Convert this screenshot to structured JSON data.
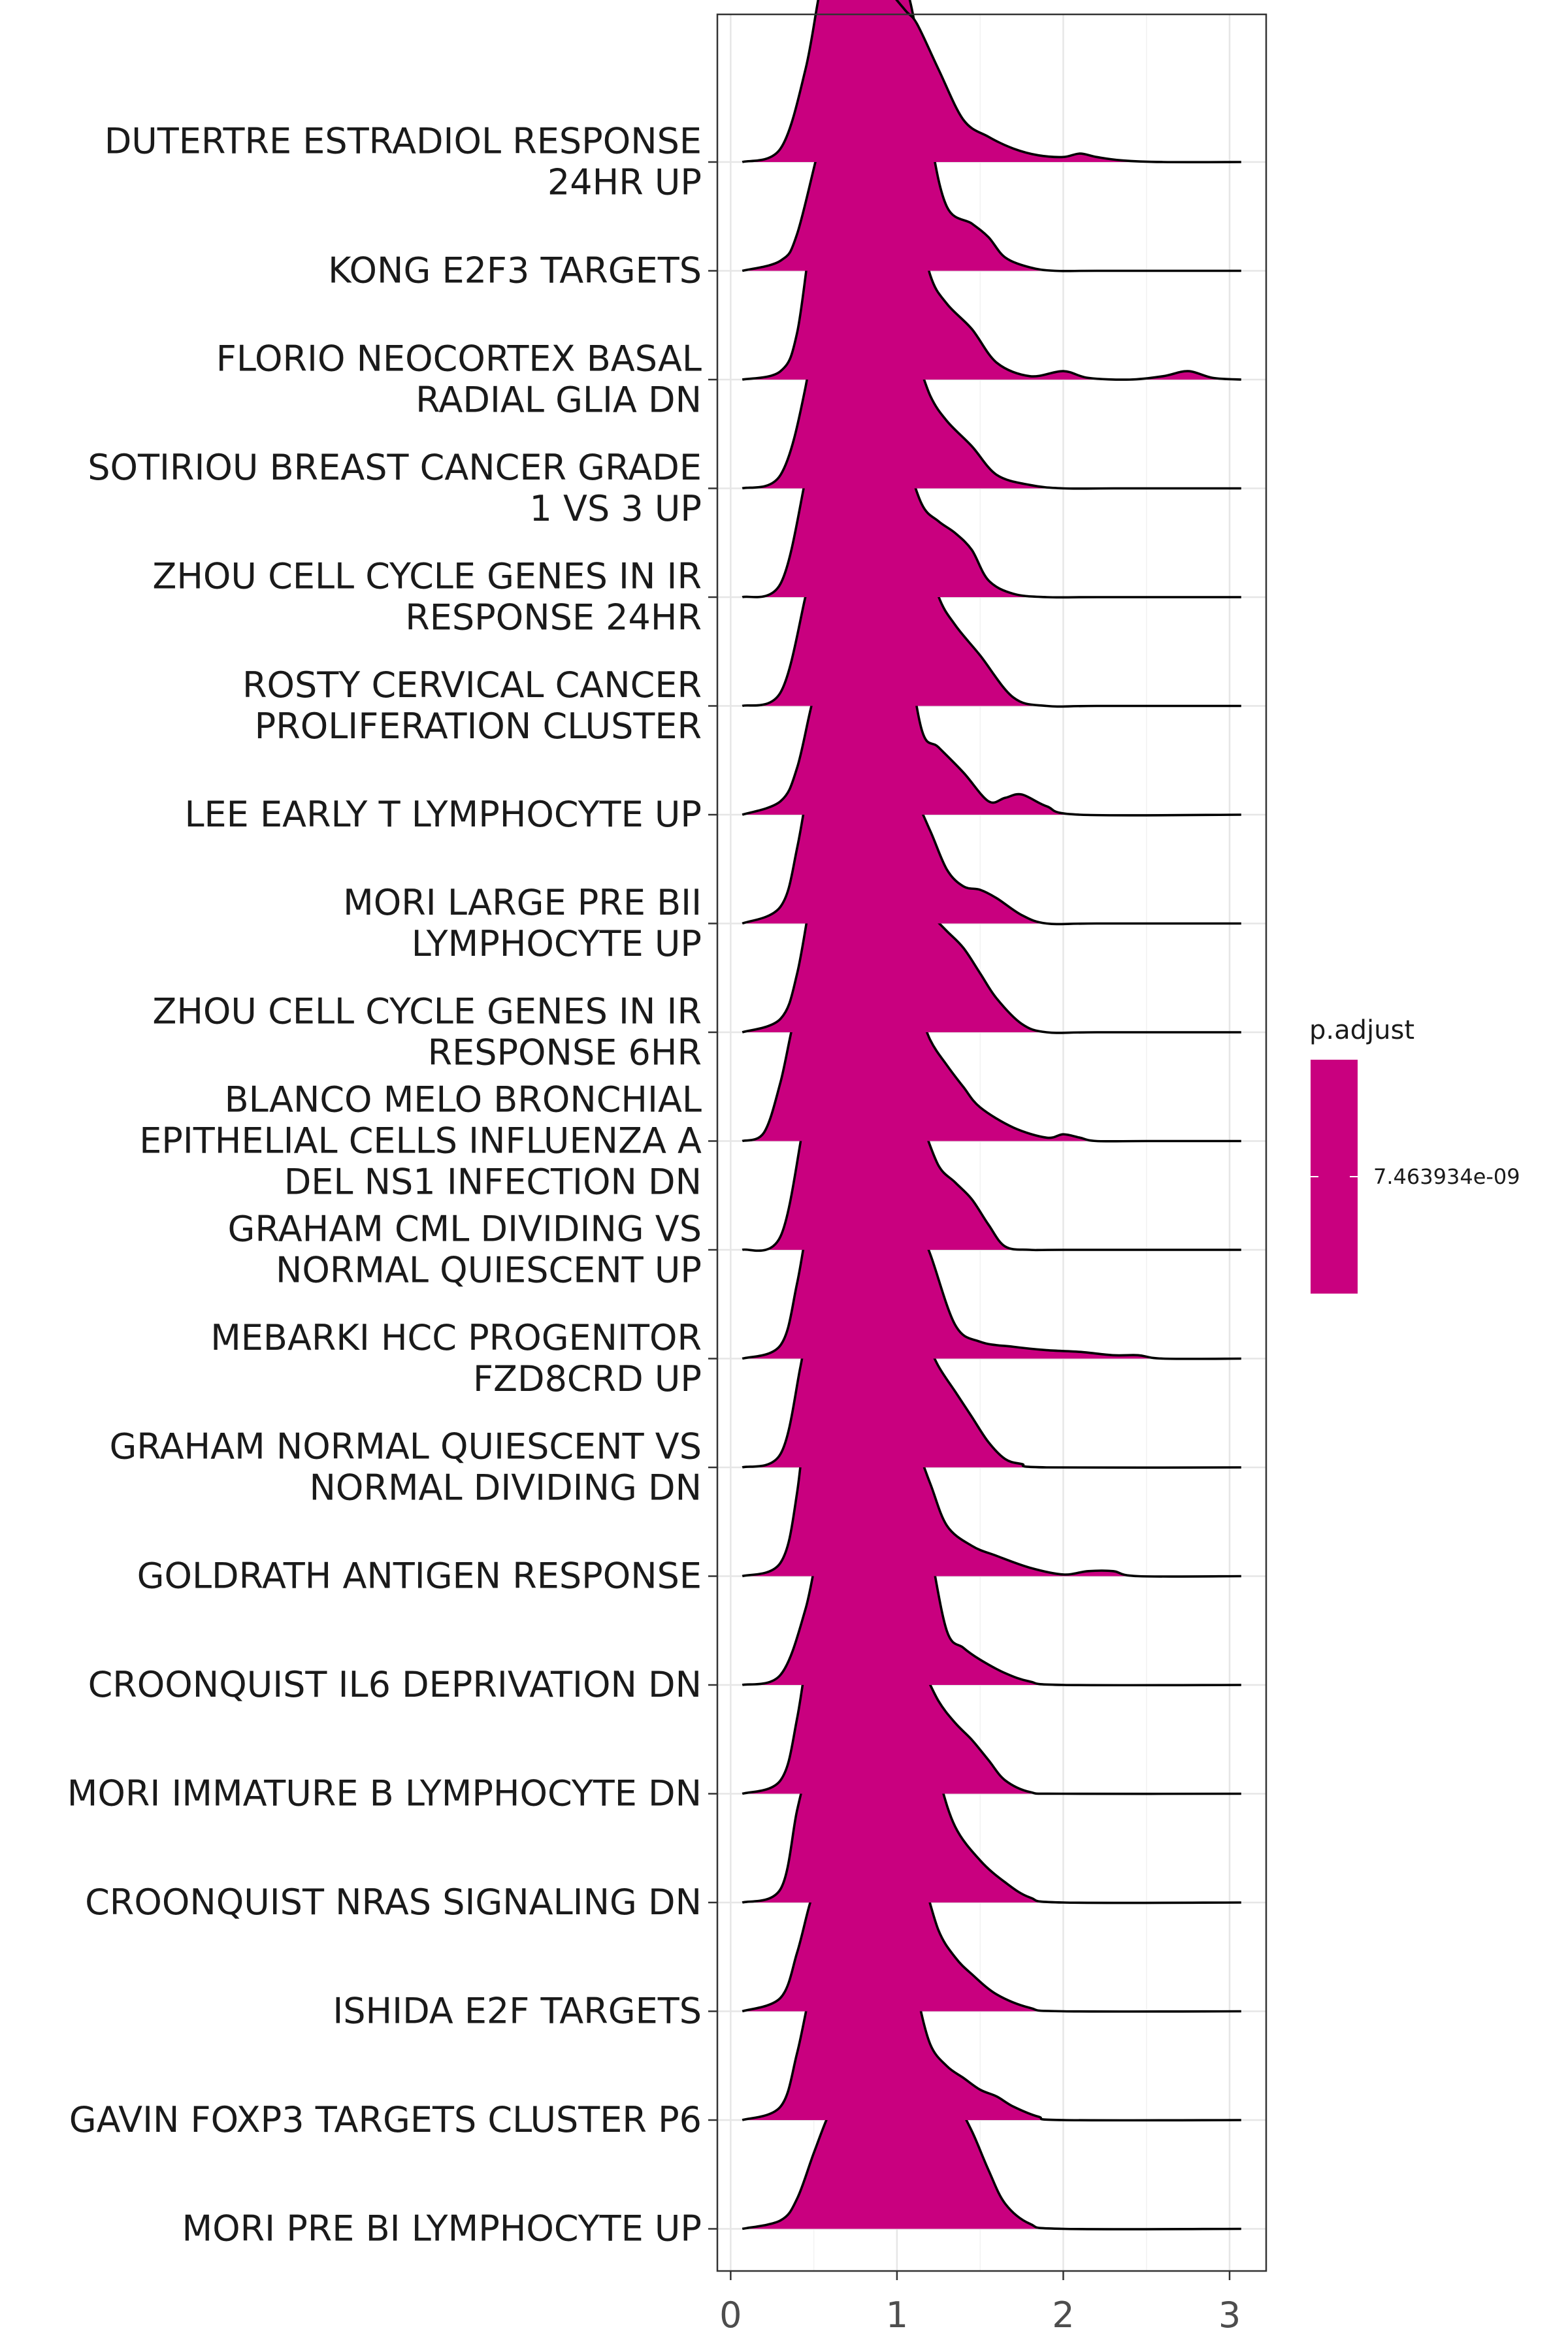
{
  "chart_data": {
    "type": "ridgeline",
    "x_ticks": [
      0,
      1,
      2,
      3
    ],
    "xlim": [
      -0.08,
      3.22
    ],
    "grid": "on",
    "fill_color": "#c9007f",
    "outline_color": "#000000",
    "legend": {
      "title": "p.adjust",
      "label": "7.463934e-09",
      "color": "#c9007f",
      "placement": "right"
    },
    "series": [
      {
        "name": "DUTERTRE ESTRADIOL RESPONSE\n24HR UP",
        "x": [
          0.07,
          0.3,
          0.45,
          0.55,
          0.65,
          0.75,
          0.85,
          0.95,
          1.05,
          1.12,
          1.25,
          1.4,
          1.55,
          1.7,
          1.85,
          2.0,
          2.1,
          2.2,
          2.35,
          2.6,
          3.07
        ],
        "y": [
          0.0,
          0.08,
          0.55,
          1.08,
          1.36,
          1.38,
          1.25,
          1.03,
          0.9,
          0.82,
          0.55,
          0.25,
          0.15,
          0.08,
          0.04,
          0.03,
          0.05,
          0.03,
          0.01,
          0.0,
          0.0
        ]
      },
      {
        "name": "KONG E2F3 TARGETS",
        "x": [
          0.07,
          0.3,
          0.4,
          0.55,
          0.65,
          0.75,
          0.85,
          0.95,
          1.02,
          1.1,
          1.2,
          1.3,
          1.45,
          1.55,
          1.65,
          1.8,
          1.95,
          2.2,
          3.07
        ],
        "y": [
          0.0,
          0.06,
          0.22,
          0.8,
          1.05,
          1.22,
          1.45,
          1.7,
          1.75,
          1.5,
          0.8,
          0.38,
          0.28,
          0.2,
          0.08,
          0.02,
          0.0,
          0.0,
          0.0
        ]
      },
      {
        "name": "FLORIO NEOCORTEX BASAL\nRADIAL GLIA DN",
        "x": [
          0.07,
          0.3,
          0.4,
          0.5,
          0.6,
          0.7,
          0.8,
          0.9,
          1.0,
          1.1,
          1.2,
          1.3,
          1.45,
          1.6,
          1.8,
          2.0,
          2.15,
          2.4,
          2.6,
          2.75,
          2.9,
          3.07
        ],
        "y": [
          0.0,
          0.05,
          0.28,
          0.95,
          1.2,
          1.28,
          1.3,
          1.32,
          1.28,
          1.05,
          0.62,
          0.45,
          0.3,
          0.1,
          0.02,
          0.05,
          0.01,
          0.0,
          0.02,
          0.05,
          0.01,
          0.0
        ]
      },
      {
        "name": "SOTIRIOU BREAST CANCER GRADE\n1 VS 3 UP",
        "x": [
          0.07,
          0.3,
          0.45,
          0.55,
          0.62,
          0.7,
          0.8,
          0.9,
          1.0,
          1.1,
          1.2,
          1.3,
          1.45,
          1.6,
          1.8,
          2.0,
          2.3,
          3.07
        ],
        "y": [
          0.0,
          0.08,
          0.6,
          1.3,
          1.4,
          1.32,
          1.18,
          1.05,
          0.98,
          0.82,
          0.55,
          0.4,
          0.25,
          0.08,
          0.02,
          0.0,
          0.0,
          0.0
        ]
      },
      {
        "name": "ZHOU CELL CYCLE GENES IN IR\nRESPONSE 24HR",
        "x": [
          0.07,
          0.3,
          0.45,
          0.55,
          0.62,
          0.7,
          0.8,
          0.88,
          0.97,
          1.05,
          1.15,
          1.25,
          1.35,
          1.45,
          1.55,
          1.7,
          1.9,
          2.2,
          3.07
        ],
        "y": [
          0.0,
          0.08,
          0.7,
          1.25,
          1.35,
          1.18,
          1.28,
          1.32,
          1.18,
          0.85,
          0.55,
          0.45,
          0.38,
          0.28,
          0.1,
          0.02,
          0.0,
          0.0,
          0.0
        ]
      },
      {
        "name": "ROSTY CERVICAL CANCER\nPROLIFERATION CLUSTER",
        "x": [
          0.07,
          0.3,
          0.45,
          0.55,
          0.62,
          0.7,
          0.8,
          0.9,
          1.0,
          1.08,
          1.15,
          1.25,
          1.35,
          1.5,
          1.7,
          1.9,
          2.2,
          3.07
        ],
        "y": [
          0.0,
          0.08,
          0.65,
          1.15,
          1.22,
          1.05,
          0.98,
          1.05,
          1.15,
          1.2,
          1.0,
          0.65,
          0.48,
          0.3,
          0.05,
          0.0,
          0.0,
          0.0
        ]
      },
      {
        "name": "LEE EARLY T LYMPHOCYTE UP",
        "x": [
          0.07,
          0.3,
          0.4,
          0.5,
          0.6,
          0.7,
          0.78,
          0.88,
          0.95,
          1.05,
          1.15,
          1.25,
          1.4,
          1.55,
          1.65,
          1.75,
          1.9,
          2.1,
          3.07
        ],
        "y": [
          0.0,
          0.08,
          0.28,
          0.7,
          0.95,
          1.05,
          1.4,
          1.6,
          1.52,
          1.05,
          0.5,
          0.4,
          0.25,
          0.08,
          0.1,
          0.12,
          0.05,
          0.0,
          0.0
        ]
      },
      {
        "name": "MORI LARGE PRE BII\nLYMPHOCYTE UP",
        "x": [
          0.07,
          0.3,
          0.4,
          0.5,
          0.55,
          0.62,
          0.7,
          0.8,
          0.9,
          1.0,
          1.1,
          1.2,
          1.3,
          1.4,
          1.5,
          1.6,
          1.75,
          1.9,
          2.2,
          3.07
        ],
        "y": [
          0.0,
          0.1,
          0.45,
          1.05,
          1.45,
          1.6,
          1.4,
          1.05,
          0.85,
          0.8,
          0.75,
          0.55,
          0.32,
          0.22,
          0.2,
          0.15,
          0.05,
          0.0,
          0.0,
          0.0
        ]
      },
      {
        "name": "ZHOU CELL CYCLE GENES IN IR\nRESPONSE 6HR",
        "x": [
          0.07,
          0.3,
          0.4,
          0.5,
          0.6,
          0.7,
          0.8,
          0.9,
          1.0,
          1.1,
          1.2,
          1.3,
          1.4,
          1.5,
          1.6,
          1.75,
          1.9,
          2.2,
          3.07
        ],
        "y": [
          0.0,
          0.08,
          0.35,
          0.9,
          1.35,
          1.28,
          1.08,
          1.0,
          0.9,
          0.8,
          0.7,
          0.6,
          0.5,
          0.35,
          0.2,
          0.05,
          0.0,
          0.0,
          0.0
        ]
      },
      {
        "name": "BLANCO MELO BRONCHIAL\nEPITHELIAL CELLS INFLUENZA A\nDEL NS1 INFECTION DN",
        "x": [
          0.07,
          0.2,
          0.3,
          0.4,
          0.52,
          0.6,
          0.7,
          0.8,
          0.92,
          1.0,
          1.1,
          1.2,
          1.3,
          1.4,
          1.5,
          1.7,
          1.9,
          2.0,
          2.1,
          2.2,
          2.5,
          3.07
        ],
        "y": [
          0.0,
          0.05,
          0.35,
          0.78,
          0.95,
          0.88,
          0.7,
          0.85,
          1.0,
          0.95,
          0.85,
          0.6,
          0.45,
          0.32,
          0.2,
          0.08,
          0.02,
          0.04,
          0.02,
          0.0,
          0.0,
          0.0
        ]
      },
      {
        "name": "GRAHAM CML DIVIDING VS\nNORMAL QUIESCENT UP",
        "x": [
          0.07,
          0.3,
          0.45,
          0.55,
          0.65,
          0.75,
          0.85,
          0.92,
          1.0,
          1.07,
          1.15,
          1.25,
          1.35,
          1.45,
          1.55,
          1.65,
          1.8,
          2.0,
          3.07
        ],
        "y": [
          0.0,
          0.08,
          0.8,
          1.2,
          1.22,
          1.2,
          1.15,
          1.0,
          0.98,
          0.95,
          0.75,
          0.5,
          0.4,
          0.3,
          0.15,
          0.02,
          0.0,
          0.0,
          0.0
        ]
      },
      {
        "name": "MEBARKI HCC PROGENITOR\nFZD8CRD UP",
        "x": [
          0.07,
          0.3,
          0.4,
          0.5,
          0.6,
          0.7,
          0.8,
          0.9,
          1.0,
          1.1,
          1.2,
          1.35,
          1.5,
          1.7,
          1.9,
          2.1,
          2.3,
          2.45,
          2.6,
          3.07
        ],
        "y": [
          0.0,
          0.08,
          0.45,
          1.0,
          1.25,
          1.3,
          1.3,
          1.1,
          0.92,
          0.85,
          0.62,
          0.2,
          0.1,
          0.07,
          0.05,
          0.04,
          0.02,
          0.02,
          0.0,
          0.0
        ]
      },
      {
        "name": "GRAHAM NORMAL QUIESCENT VS\nNORMAL DIVIDING DN",
        "x": [
          0.07,
          0.3,
          0.42,
          0.5,
          0.58,
          0.65,
          0.75,
          0.85,
          0.95,
          1.05,
          1.15,
          1.25,
          1.35,
          1.45,
          1.55,
          1.65,
          1.75,
          1.9,
          3.07
        ],
        "y": [
          0.0,
          0.08,
          0.6,
          1.05,
          1.18,
          1.05,
          1.0,
          0.92,
          0.88,
          0.95,
          0.8,
          0.6,
          0.45,
          0.3,
          0.15,
          0.05,
          0.02,
          0.0,
          0.0
        ]
      },
      {
        "name": "GOLDRATH ANTIGEN RESPONSE",
        "x": [
          0.07,
          0.3,
          0.4,
          0.48,
          0.55,
          0.62,
          0.7,
          0.78,
          0.88,
          0.95,
          1.03,
          1.1,
          1.2,
          1.3,
          1.45,
          1.6,
          1.8,
          2.0,
          2.15,
          2.3,
          2.45,
          3.07
        ],
        "y": [
          0.0,
          0.08,
          0.5,
          1.25,
          1.75,
          1.7,
          1.2,
          0.8,
          0.8,
          0.75,
          0.85,
          0.8,
          0.55,
          0.3,
          0.18,
          0.12,
          0.05,
          0.01,
          0.03,
          0.03,
          0.0,
          0.0
        ]
      },
      {
        "name": "CROONQUIST IL6 DEPRIVATION DN",
        "x": [
          0.07,
          0.3,
          0.45,
          0.55,
          0.65,
          0.72,
          0.8,
          0.88,
          0.95,
          1.02,
          1.1,
          1.2,
          1.3,
          1.4,
          1.5,
          1.65,
          1.8,
          2.0,
          3.07
        ],
        "y": [
          0.0,
          0.06,
          0.45,
          0.9,
          0.95,
          0.98,
          1.25,
          1.45,
          1.5,
          1.45,
          1.3,
          0.8,
          0.32,
          0.22,
          0.15,
          0.07,
          0.02,
          0.0,
          0.0
        ]
      },
      {
        "name": "MORI IMMATURE B LYMPHOCYTE DN",
        "x": [
          0.07,
          0.3,
          0.4,
          0.5,
          0.57,
          0.65,
          0.75,
          0.85,
          0.95,
          1.05,
          1.15,
          1.25,
          1.35,
          1.45,
          1.55,
          1.65,
          1.8,
          2.0,
          3.07
        ],
        "y": [
          0.0,
          0.08,
          0.45,
          1.1,
          1.45,
          1.5,
          1.4,
          1.25,
          1.1,
          0.95,
          0.75,
          0.55,
          0.42,
          0.32,
          0.2,
          0.08,
          0.01,
          0.0,
          0.0
        ]
      },
      {
        "name": "CROONQUIST NRAS SIGNALING DN",
        "x": [
          0.07,
          0.3,
          0.4,
          0.48,
          0.55,
          0.62,
          0.7,
          0.8,
          0.9,
          1.0,
          1.08,
          1.15,
          1.25,
          1.35,
          1.5,
          1.65,
          1.8,
          2.0,
          3.07
        ],
        "y": [
          0.0,
          0.08,
          0.55,
          0.85,
          0.98,
          0.92,
          0.88,
          1.0,
          1.2,
          1.3,
          1.35,
          1.15,
          0.75,
          0.45,
          0.25,
          0.12,
          0.03,
          0.0,
          0.0
        ]
      },
      {
        "name": "ISHIDA E2F TARGETS",
        "x": [
          0.07,
          0.3,
          0.4,
          0.48,
          0.55,
          0.6,
          0.68,
          0.8,
          0.9,
          1.0,
          1.05,
          1.15,
          1.25,
          1.35,
          1.45,
          1.6,
          1.8,
          2.0,
          3.07
        ],
        "y": [
          0.0,
          0.08,
          0.35,
          0.65,
          0.82,
          0.8,
          0.7,
          0.75,
          0.92,
          1.0,
          1.02,
          0.8,
          0.48,
          0.32,
          0.22,
          0.1,
          0.02,
          0.0,
          0.0
        ]
      },
      {
        "name": "GAVIN FOXP3 TARGETS CLUSTER P6",
        "x": [
          0.07,
          0.3,
          0.4,
          0.5,
          0.6,
          0.7,
          0.8,
          0.9,
          0.98,
          1.05,
          1.12,
          1.2,
          1.3,
          1.4,
          1.5,
          1.6,
          1.7,
          1.85,
          2.0,
          3.07
        ],
        "y": [
          0.0,
          0.08,
          0.4,
          0.85,
          1.08,
          1.2,
          1.25,
          1.3,
          1.28,
          1.1,
          0.75,
          0.45,
          0.32,
          0.25,
          0.18,
          0.14,
          0.08,
          0.02,
          0.0,
          0.0
        ]
      },
      {
        "name": "MORI PRE BI LYMPHOCYTE UP",
        "x": [
          0.07,
          0.3,
          0.4,
          0.5,
          0.6,
          0.7,
          0.8,
          0.9,
          1.0,
          1.07,
          1.15,
          1.25,
          1.35,
          1.45,
          1.55,
          1.65,
          1.8,
          2.0,
          3.07
        ],
        "y": [
          0.0,
          0.05,
          0.18,
          0.45,
          0.7,
          0.85,
          1.05,
          1.2,
          1.3,
          1.2,
          0.95,
          0.78,
          0.75,
          0.58,
          0.35,
          0.15,
          0.03,
          0.0,
          0.0
        ]
      }
    ]
  }
}
